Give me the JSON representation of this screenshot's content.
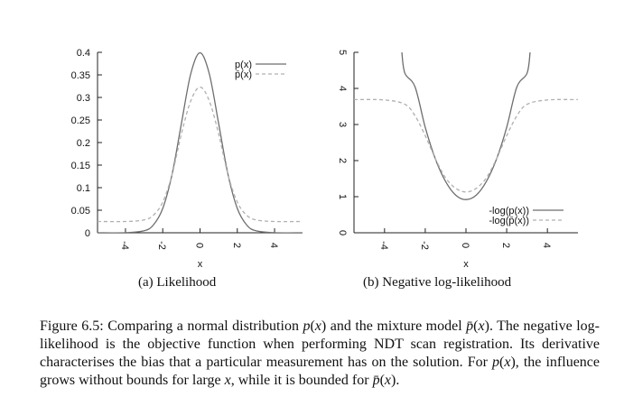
{
  "chart_data": [
    {
      "type": "line",
      "subcaption": "(a) Likelihood",
      "xlabel": "x",
      "ylabel": "",
      "xlim": [
        -5.5,
        5.5
      ],
      "ylim": [
        0,
        0.4
      ],
      "xticks": [
        -4,
        -2,
        0,
        2,
        4
      ],
      "yticks": [
        0,
        0.05,
        0.1,
        0.15,
        0.2,
        0.25,
        0.3,
        0.35,
        0.4
      ],
      "xtick_labels": [
        "-4",
        "-2",
        "0",
        "2",
        "4"
      ],
      "ytick_labels": [
        "0",
        "0.05",
        "0.1",
        "0.15",
        "0.2",
        "0.25",
        "0.3",
        "0.35",
        "0.4"
      ],
      "legend_position": "top-right",
      "series": [
        {
          "name": "p(x)",
          "style": "solid",
          "x": [
            -5.5,
            -4,
            -3,
            -2.5,
            -2,
            -1.5,
            -1,
            -0.5,
            0,
            0.5,
            1,
            1.5,
            2,
            2.5,
            3,
            4,
            5.5
          ],
          "y": [
            0,
            0.0001,
            0.0044,
            0.0175,
            0.054,
            0.1295,
            0.242,
            0.352,
            0.399,
            0.352,
            0.242,
            0.1295,
            0.054,
            0.0175,
            0.0044,
            0.0001,
            0
          ]
        },
        {
          "name": "p̄(x)",
          "style": "dashed",
          "x": [
            -5.5,
            -4,
            -3,
            -2.5,
            -2,
            -1.5,
            -1,
            -0.5,
            0,
            0.5,
            1,
            1.5,
            2,
            2.5,
            3,
            4,
            5.5
          ],
          "y": [
            0.025,
            0.025,
            0.0285,
            0.039,
            0.068,
            0.129,
            0.219,
            0.292,
            0.323,
            0.292,
            0.219,
            0.129,
            0.068,
            0.039,
            0.0285,
            0.025,
            0.025
          ]
        }
      ]
    },
    {
      "type": "line",
      "subcaption": "(b) Negative log-likelihood",
      "xlabel": "x",
      "ylabel": "",
      "xlim": [
        -5.5,
        5.5
      ],
      "ylim": [
        0,
        5
      ],
      "xticks": [
        -4,
        -2,
        0,
        2,
        4
      ],
      "yticks": [
        0,
        1,
        2,
        3,
        4,
        5
      ],
      "xtick_labels": [
        "-4",
        "-2",
        "0",
        "2",
        "4"
      ],
      "ytick_labels": [
        "0",
        "1",
        "2",
        "3",
        "4",
        "5"
      ],
      "legend_position": "bottom-right",
      "series": [
        {
          "name": "-log(p(x))",
          "style": "solid",
          "x": [
            -3.15,
            -3,
            -2.5,
            -2,
            -1.5,
            -1,
            -0.5,
            0,
            0.5,
            1,
            1.5,
            2,
            2.5,
            3,
            3.15
          ],
          "y": [
            5.0,
            4.42,
            4.04,
            2.92,
            2.04,
            1.42,
            1.04,
            0.92,
            1.04,
            1.42,
            2.04,
            2.92,
            4.04,
            4.42,
            5.0
          ]
        },
        {
          "name": "-log(p̄(x))",
          "style": "dashed",
          "x": [
            -5.5,
            -4,
            -3,
            -2.5,
            -2,
            -1.5,
            -1,
            -0.5,
            0,
            0.5,
            1,
            1.5,
            2,
            2.5,
            3,
            4,
            5.5
          ],
          "y": [
            3.69,
            3.68,
            3.56,
            3.24,
            2.69,
            2.05,
            1.52,
            1.23,
            1.13,
            1.23,
            1.52,
            2.05,
            2.69,
            3.24,
            3.56,
            3.68,
            3.69
          ]
        }
      ]
    }
  ],
  "caption": {
    "label": "Figure 6.5:",
    "text_html": " Comparing a normal distribution <i>p</i>(<i>x</i>) and the mixture model <i>p̄</i>(<i>x</i>). The negative log-likelihood is the objective function when performing NDT scan registration. Its derivative characterises the bias that a particular measurement has on the solution. For <i>p</i>(<i>x</i>), the influence grows without bounds for large <i>x</i>, while it is bounded for <i>p̄</i>(<i>x</i>)."
  },
  "colors": {
    "solid": "#6e6e6e",
    "dashed": "#b0b0b0",
    "axis": "#222222"
  }
}
